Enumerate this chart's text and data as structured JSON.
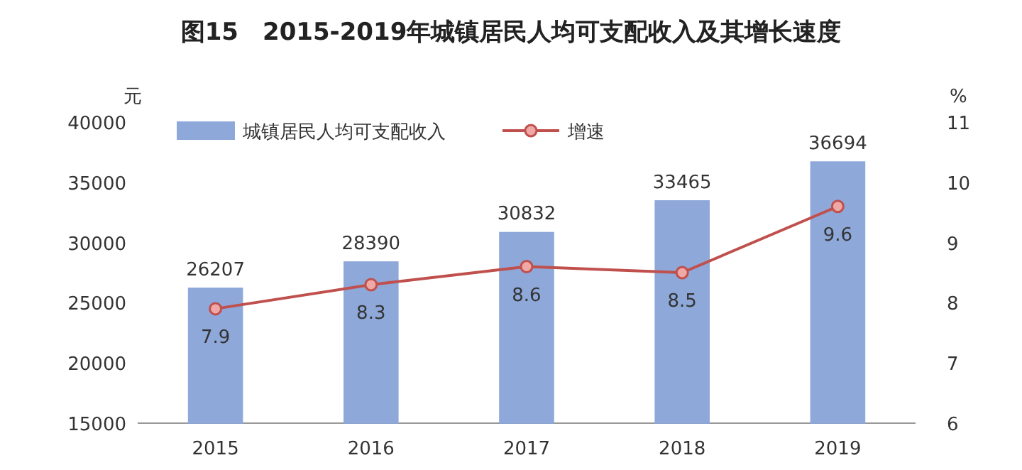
{
  "chart_data": {
    "type": "bar",
    "title": "图15　2015-2019年城镇居民人均可支配收入及其增长速度",
    "ylabel": "元",
    "y2label": "%",
    "categories": [
      "2015",
      "2016",
      "2017",
      "2018",
      "2019"
    ],
    "series": [
      {
        "name": "城镇居民人均可支配收入",
        "color": "#8ea8da",
        "values": [
          26207,
          28390,
          30832,
          33465,
          36694
        ]
      },
      {
        "name": "增速",
        "type": "line",
        "axis": "y2",
        "color": "#c0504d",
        "values": [
          7.9,
          8.3,
          8.6,
          8.5,
          9.6
        ]
      }
    ],
    "ylim": [
      15000,
      40000
    ],
    "yticks": [
      15000,
      20000,
      25000,
      30000,
      35000,
      40000
    ],
    "y2lim": [
      6,
      11
    ],
    "y2ticks": [
      6,
      7,
      8,
      9,
      10,
      11
    ],
    "legend": "top left",
    "marker": "circle",
    "data_labels": true
  }
}
